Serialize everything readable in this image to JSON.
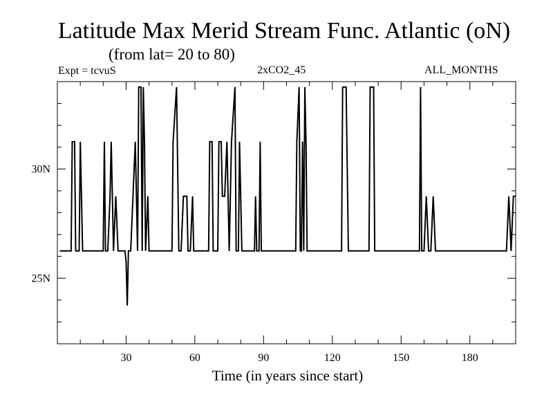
{
  "chart_data": {
    "type": "line",
    "title": "Latitude Max Merid Stream Func. Atlantic (oN)",
    "subtitle": "(from lat= 20 to 80)",
    "annotations": {
      "left": "Expt = tcvuS",
      "center": "2xCO2_45",
      "right": "ALL_MONTHS"
    },
    "xlabel": "Time (in years since start)",
    "ylabel": "",
    "xlim": [
      0,
      200
    ],
    "ylim": [
      22,
      34
    ],
    "x_ticks": [
      30,
      60,
      90,
      120,
      150,
      180
    ],
    "x_tick_labels": [
      "30",
      "60",
      "90",
      "120",
      "150",
      "180"
    ],
    "y_ticks": [
      25,
      30
    ],
    "y_tick_labels": [
      "25N",
      "30N"
    ],
    "grid": false,
    "series": [
      {
        "color": "#000000",
        "points": [
          [
            1,
            26.25
          ],
          [
            6,
            26.25
          ],
          [
            6.5,
            31.25
          ],
          [
            7.5,
            31.25
          ],
          [
            8,
            26.25
          ],
          [
            9.5,
            26.25
          ],
          [
            10,
            31.25
          ],
          [
            11,
            26.25
          ],
          [
            20,
            26.25
          ],
          [
            20.5,
            31.25
          ],
          [
            21,
            26.25
          ],
          [
            21.5,
            26.25
          ],
          [
            22,
            26.25
          ],
          [
            23,
            28.75
          ],
          [
            23.5,
            31.25
          ],
          [
            24.5,
            26.25
          ],
          [
            25.5,
            28.75
          ],
          [
            26.5,
            26.25
          ],
          [
            29,
            26.25
          ],
          [
            29.5,
            26.25
          ],
          [
            30,
            25.75
          ],
          [
            30.5,
            23.75
          ],
          [
            31,
            26.25
          ],
          [
            32,
            26.25
          ],
          [
            33,
            28.75
          ],
          [
            34,
            31.25
          ],
          [
            35,
            26.25
          ],
          [
            35.5,
            33.75
          ],
          [
            36.5,
            33.75
          ],
          [
            37,
            26.25
          ],
          [
            37.5,
            33.75
          ],
          [
            38,
            31.25
          ],
          [
            38.5,
            26.25
          ],
          [
            39.5,
            28.75
          ],
          [
            40,
            26.25
          ],
          [
            50,
            26.25
          ],
          [
            50.5,
            31.25
          ],
          [
            52,
            33.75
          ],
          [
            53,
            26.25
          ],
          [
            54,
            26.25
          ],
          [
            55,
            28.75
          ],
          [
            56.5,
            28.75
          ],
          [
            57,
            26.25
          ],
          [
            58,
            26.25
          ],
          [
            59,
            28.75
          ],
          [
            59.5,
            26.25
          ],
          [
            66,
            26.25
          ],
          [
            66.5,
            31.25
          ],
          [
            67.5,
            31.25
          ],
          [
            68,
            26.25
          ],
          [
            70,
            26.25
          ],
          [
            70.5,
            31.25
          ],
          [
            71.5,
            31.25
          ],
          [
            72,
            28.75
          ],
          [
            73,
            28.75
          ],
          [
            74,
            31.25
          ],
          [
            75,
            26.25
          ],
          [
            76,
            31.25
          ],
          [
            77.5,
            33.75
          ],
          [
            78,
            26.25
          ],
          [
            79,
            26.25
          ],
          [
            79.5,
            31.25
          ],
          [
            80.5,
            26.25
          ],
          [
            86,
            26.25
          ],
          [
            86.5,
            28.75
          ],
          [
            87,
            26.25
          ],
          [
            88,
            26.25
          ],
          [
            88.5,
            31.25
          ],
          [
            89,
            26.25
          ],
          [
            104,
            26.25
          ],
          [
            104.5,
            31.25
          ],
          [
            105.5,
            33.75
          ],
          [
            106,
            26.25
          ],
          [
            106.5,
            26.25
          ],
          [
            107,
            31.25
          ],
          [
            107.5,
            26.25
          ],
          [
            108,
            33.75
          ],
          [
            108.5,
            31.25
          ],
          [
            109,
            26.25
          ],
          [
            124,
            26.25
          ],
          [
            124.5,
            33.75
          ],
          [
            126,
            33.75
          ],
          [
            127,
            26.25
          ],
          [
            136,
            26.25
          ],
          [
            136.5,
            33.75
          ],
          [
            138,
            33.75
          ],
          [
            138.5,
            26.25
          ],
          [
            158,
            26.25
          ],
          [
            158.5,
            33.75
          ],
          [
            159,
            26.25
          ],
          [
            160,
            26.25
          ],
          [
            161,
            28.75
          ],
          [
            162,
            26.25
          ],
          [
            163,
            26.25
          ],
          [
            164,
            28.75
          ],
          [
            165,
            26.25
          ],
          [
            196,
            26.25
          ],
          [
            197,
            28.75
          ],
          [
            198,
            26.25
          ],
          [
            199,
            28.75
          ],
          [
            200,
            28.75
          ]
        ]
      }
    ]
  }
}
